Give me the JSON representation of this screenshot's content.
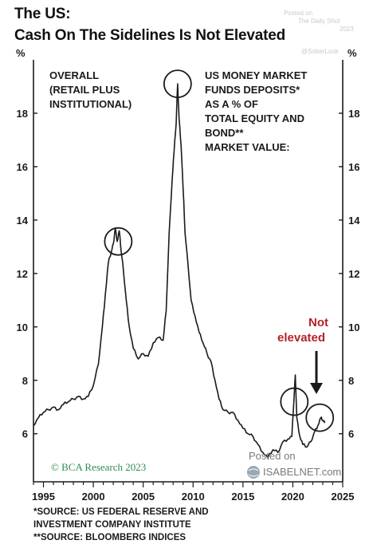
{
  "header": {
    "title_line1": "The US:",
    "title_line2": "Cash On The Sidelines Is Not Elevated"
  },
  "watermarks": {
    "daily_shot_line1": "Posted on",
    "daily_shot_line2": "The Daily Shot",
    "daily_shot_line3": "2023",
    "handle": "@SoberLook",
    "isabelnet_line1": "Posted on",
    "isabelnet_line2": "ISABELNET.com"
  },
  "annotations": {
    "left_block": [
      "OVERALL",
      "(RETAIL PLUS",
      "INSTITUTIONAL)"
    ],
    "right_block": [
      "US MONEY MARKET",
      "FUNDS DEPOSITS*",
      "AS A % OF",
      "TOTAL EQUITY AND",
      "BOND**",
      "MARKET VALUE:"
    ],
    "not_elevated": [
      "Not",
      "elevated"
    ],
    "credit": "© BCA Research 2023"
  },
  "footnotes": [
    "*SOURCE: US FEDERAL RESERVE AND",
    "INVESTMENT COMPANY INSTITUTE",
    "**SOURCE: BLOOMBERG INDICES"
  ],
  "colors": {
    "line": "#1a1a1a",
    "annotation_red": "#b3222a",
    "credit_green": "#2e8b57",
    "watermark": "#c9c9c9"
  },
  "chart_data": {
    "type": "line",
    "title": "The US: Cash On The Sidelines Is Not Elevated",
    "xlabel": "",
    "ylabel": "%",
    "xlim": [
      1994,
      2025
    ],
    "ylim": [
      4.2,
      20
    ],
    "x_ticks": [
      1995,
      2000,
      2005,
      2010,
      2015,
      2020,
      2025
    ],
    "y_ticks": [
      6,
      8,
      10,
      12,
      14,
      16,
      18
    ],
    "y_axis_unit_label": "%",
    "grid": false,
    "series": [
      {
        "x": [
          1994.0,
          1994.5,
          1995.0,
          1995.5,
          1996.0,
          1996.5,
          1997.0,
          1997.5,
          1998.0,
          1998.5,
          1999.0,
          1999.5,
          2000.0,
          2000.5,
          2000.9,
          2001.2,
          2001.5,
          2001.8,
          2002.0,
          2002.2,
          2002.4,
          2002.6,
          2002.8,
          2003.0,
          2003.3,
          2003.6,
          2004.0,
          2004.5,
          2005.0,
          2005.5,
          2006.0,
          2006.5,
          2007.0,
          2007.3,
          2007.6,
          2007.9,
          2008.1,
          2008.3,
          2008.45,
          2008.6,
          2008.8,
          2009.0,
          2009.2,
          2009.5,
          2009.8,
          2010.2,
          2010.6,
          2011.0,
          2011.4,
          2011.8,
          2012.2,
          2012.6,
          2013.0,
          2013.5,
          2014.0,
          2014.5,
          2015.0,
          2015.5,
          2016.0,
          2016.5,
          2017.0,
          2017.5,
          2018.0,
          2018.5,
          2019.0,
          2019.5,
          2019.9,
          2020.1,
          2020.25,
          2020.4,
          2020.7,
          2021.0,
          2021.4,
          2021.8,
          2022.2,
          2022.5,
          2022.8,
          2023.0,
          2023.2
        ],
        "y": [
          6.3,
          6.6,
          6.8,
          6.9,
          7.0,
          6.9,
          7.1,
          7.2,
          7.3,
          7.4,
          7.3,
          7.4,
          7.8,
          8.6,
          10.0,
          11.2,
          12.4,
          12.8,
          13.1,
          13.7,
          13.2,
          13.6,
          12.8,
          12.2,
          11.0,
          10.0,
          9.2,
          8.8,
          9.0,
          8.9,
          9.4,
          9.6,
          9.5,
          10.6,
          13.5,
          15.5,
          16.6,
          17.6,
          19.1,
          17.8,
          16.8,
          15.2,
          13.5,
          12.3,
          11.0,
          10.4,
          9.8,
          9.4,
          9.0,
          8.7,
          8.0,
          7.3,
          6.9,
          6.8,
          6.8,
          6.5,
          6.2,
          6.0,
          5.9,
          5.6,
          5.3,
          5.1,
          5.4,
          5.3,
          5.7,
          5.8,
          5.9,
          7.2,
          8.2,
          6.6,
          5.9,
          5.6,
          5.5,
          5.7,
          6.1,
          6.3,
          6.6,
          6.5,
          6.4
        ]
      }
    ],
    "highlight_circles_at": [
      2002.5,
      2008.45,
      2020.15,
      2022.7
    ],
    "arrow_points_to": 2022.7
  }
}
